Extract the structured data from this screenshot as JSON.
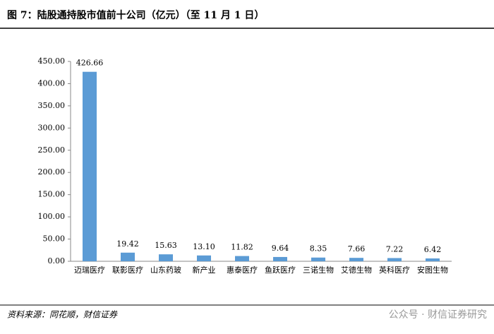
{
  "chart_data": {
    "type": "bar",
    "title": "图 7：陆股通持股市值前十公司（亿元）（至 11 月 1 日）",
    "source": "资料来源：同花顺，财信证券",
    "watermark": "公众号 · 财信证券研究",
    "categories": [
      "迈瑞医疗",
      "联影医疗",
      "山东药玻",
      "新产业",
      "惠泰医疗",
      "鱼跃医疗",
      "三诺生物",
      "艾德生物",
      "英科医疗",
      "安图生物"
    ],
    "values": [
      426.66,
      19.42,
      15.63,
      13.1,
      11.82,
      9.64,
      8.35,
      7.66,
      7.22,
      6.42
    ],
    "value_labels": [
      "426.66",
      "19.42",
      "15.63",
      "13.10",
      "11.82",
      "9.64",
      "8.35",
      "7.66",
      "7.22",
      "6.42"
    ],
    "color": "#5b9bd5",
    "ylim": [
      0,
      450
    ],
    "yticks": [
      {
        "value": 0,
        "label": "0.00"
      },
      {
        "value": 50,
        "label": "50.00"
      },
      {
        "value": 100,
        "label": "100.00"
      },
      {
        "value": 150,
        "label": "150.00"
      },
      {
        "value": 200,
        "label": "200.00"
      },
      {
        "value": 250,
        "label": "250.00"
      },
      {
        "value": 300,
        "label": "300.00"
      },
      {
        "value": 350,
        "label": "350.00"
      },
      {
        "value": 400,
        "label": "400.00"
      },
      {
        "value": 450,
        "label": "450.00"
      }
    ],
    "grid": false
  }
}
